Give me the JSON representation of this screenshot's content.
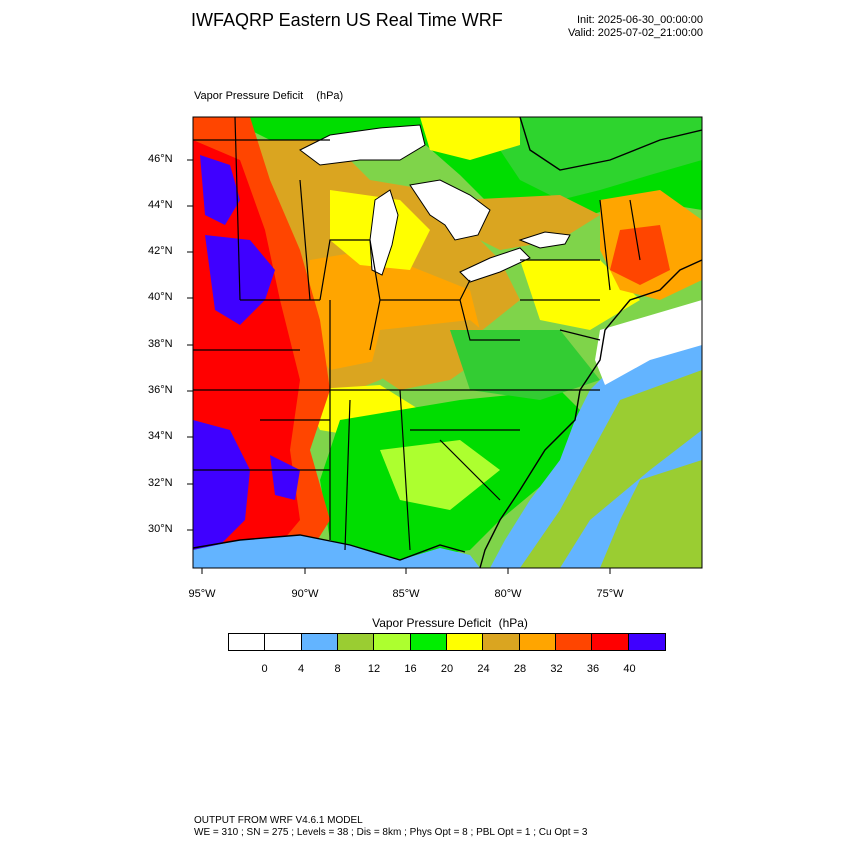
{
  "header": {
    "title": "IWFAQRP Eastern US Real Time WRF",
    "init": "Init: 2025-06-30_00:00:00",
    "valid": "Valid: 2025-07-02_21:00:00"
  },
  "map": {
    "field_title": "Vapor Pressure Deficit",
    "field_units": "(hPa)",
    "lat_ticks": [
      "46°N",
      "44°N",
      "42°N",
      "40°N",
      "38°N",
      "36°N",
      "34°N",
      "32°N",
      "30°N"
    ],
    "lon_ticks": [
      "95°W",
      "90°W",
      "85°W",
      "80°W",
      "75°W"
    ],
    "lakes": [
      "Lake Superior",
      "Lake Michigan",
      "Lake Huron",
      "Lake Erie",
      "Lake Ontario"
    ]
  },
  "colorbar": {
    "title": "Vapor Pressure Deficit",
    "units": "(hPa)",
    "labels": [
      "0",
      "4",
      "8",
      "12",
      "16",
      "20",
      "24",
      "28",
      "32",
      "36",
      "40"
    ],
    "colors": [
      "#ffffff",
      "#ffffff",
      "#63b4ff",
      "#9acd32",
      "#adff2f",
      "#00ee00",
      "#ffff00",
      "#daa520",
      "#ffa500",
      "#ff4500",
      "#ff0000",
      "#3f00ff"
    ]
  },
  "footer": {
    "line1": "OUTPUT FROM WRF V4.6.1 MODEL",
    "line2": "WE = 310 ; SN = 275 ; Levels = 38 ; Dis = 8km ; Phys Opt = 8 ; PBL Opt = 1 ; Cu Opt = 3"
  }
}
